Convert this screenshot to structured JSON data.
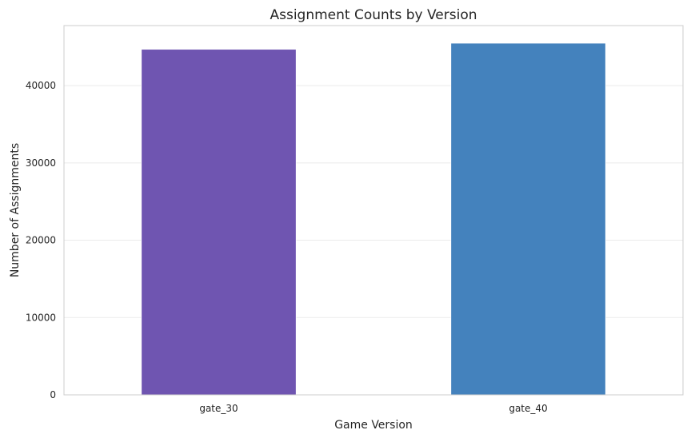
{
  "chart_data": {
    "type": "bar",
    "title": "Assignment Counts by Version",
    "xlabel": "Game Version",
    "ylabel": "Number of Assignments",
    "categories": [
      "gate_30",
      "gate_40"
    ],
    "values": [
      44700,
      45489
    ],
    "colors": [
      "#6f55b1",
      "#4482bd"
    ],
    "ylim": [
      0,
      47764
    ],
    "yticks": [
      0,
      10000,
      20000,
      30000,
      40000
    ],
    "ytick_labels": [
      "0",
      "10000",
      "20000",
      "30000",
      "40000"
    ],
    "grid": "horizontal",
    "legend": "none"
  }
}
